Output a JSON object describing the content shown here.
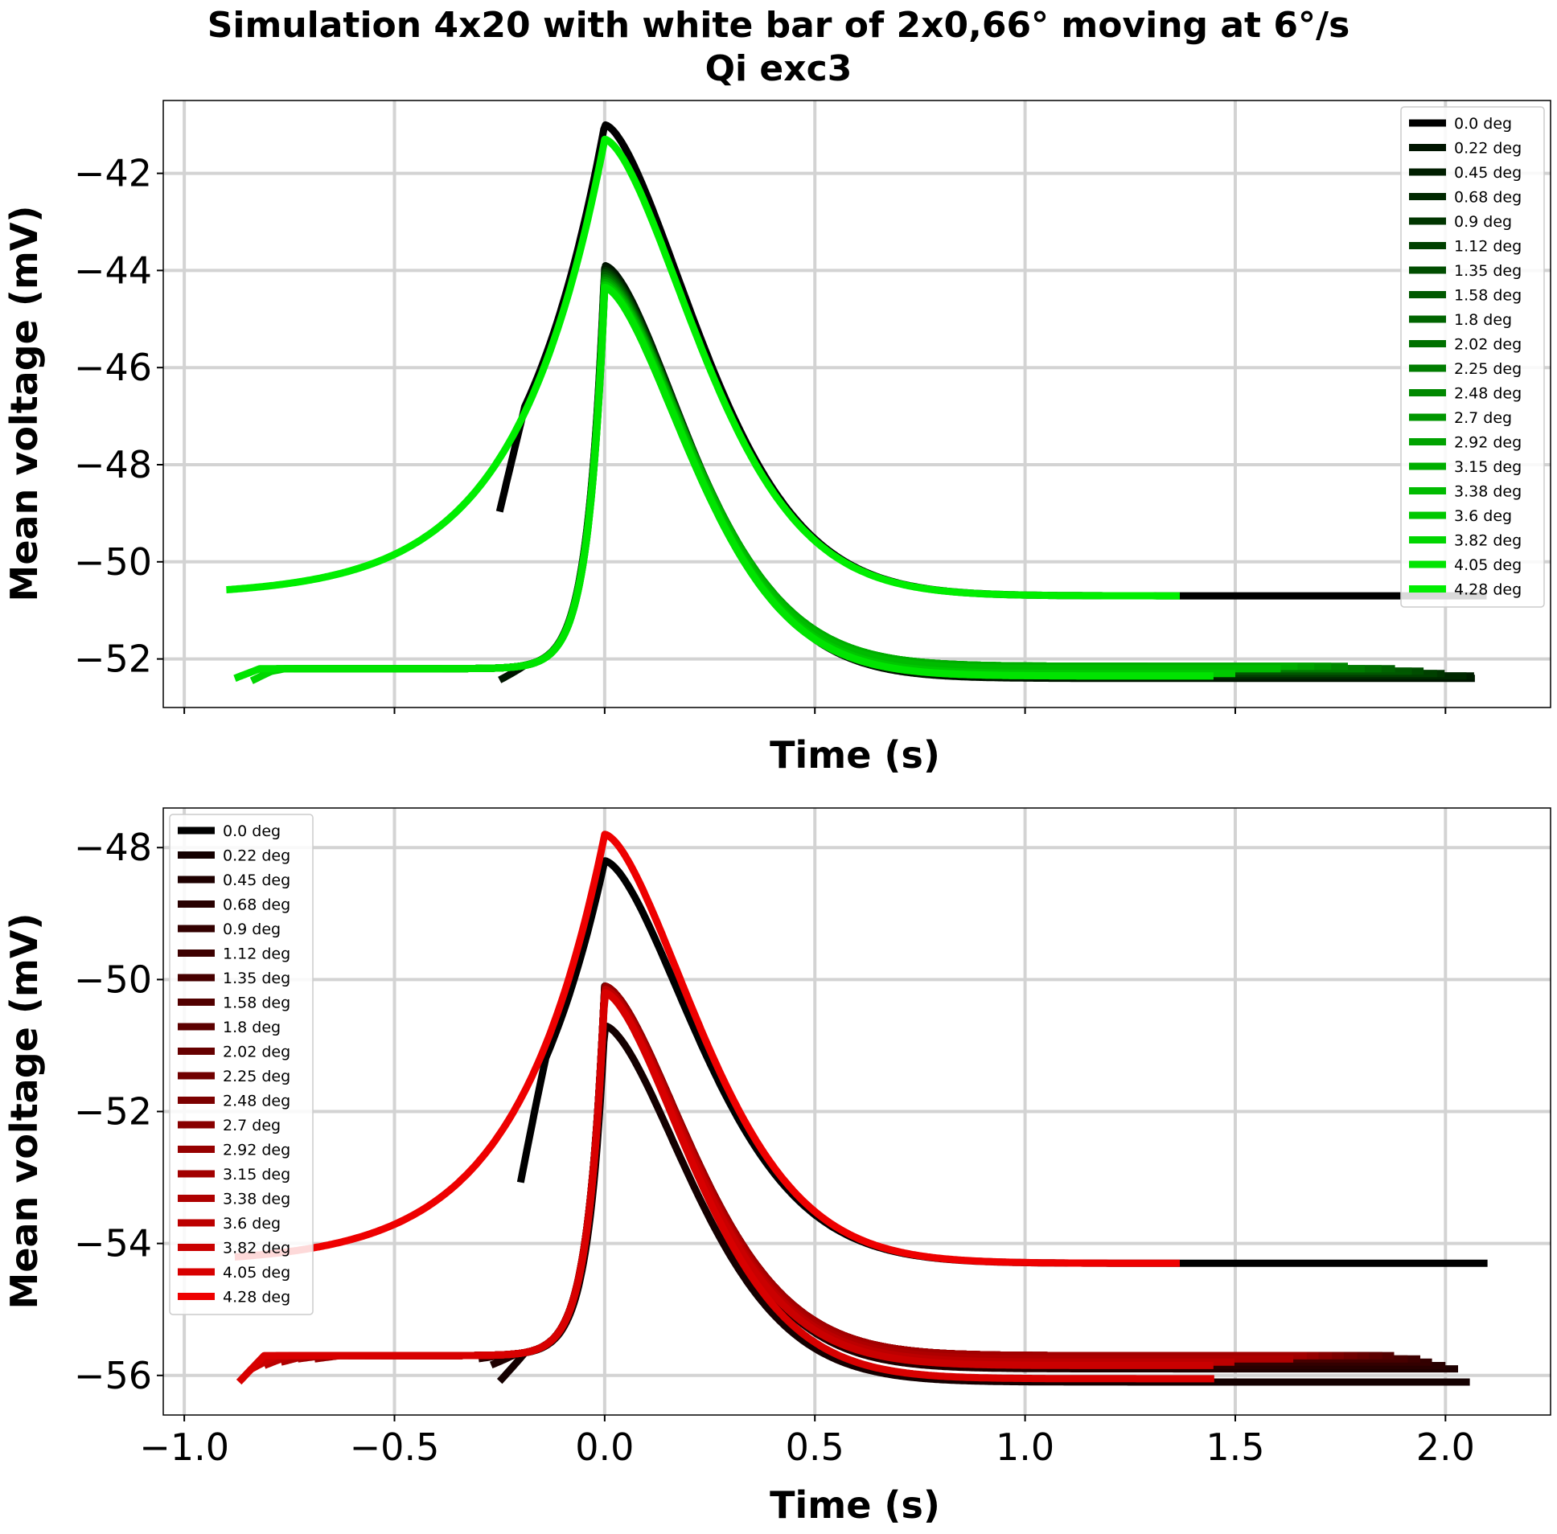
{
  "chart_data": [
    {
      "type": "line",
      "title": "Simulation 4x20 with white bar of 2x0,66° moving at 6°/s",
      "subtitle": "Qi exc3",
      "xlabel": "Time (s)",
      "ylabel": "Mean voltage (mV)",
      "xlim": [
        -1.05,
        2.25
      ],
      "ylim": [
        -53.0,
        -40.5
      ],
      "yticks": [
        -42,
        -44,
        -46,
        -48,
        -50,
        -52
      ],
      "ytick_labels": [
        "−42",
        "−44",
        "−46",
        "−48",
        "−50",
        "−52"
      ],
      "xticks": [
        -1.0,
        -0.5,
        0.0,
        0.5,
        1.0,
        1.5,
        2.0
      ],
      "xtick_labels_shown": false,
      "grid": true,
      "legend": "top-right",
      "baseline_mV": -52.2,
      "outer_baseline_mV": -50.7,
      "series": [
        {
          "name": "0.0 deg",
          "color": "#000000",
          "start": -0.25,
          "end": 2.1,
          "start_value": -52.4,
          "peak": -41.0,
          "end_value": -50.7
        },
        {
          "name": "0.22 deg",
          "color": "#001400",
          "start": -0.25,
          "end": 2.07,
          "start_value": -52.45,
          "peak": -43.9,
          "end_value": -52.4
        },
        {
          "name": "0.45 deg",
          "color": "#001e00",
          "start": -0.28,
          "end": 2.07,
          "start_value": -52.2,
          "peak": -43.95,
          "end_value": -52.35
        },
        {
          "name": "0.68 deg",
          "color": "#002800",
          "start": -0.31,
          "end": 2.05,
          "start_value": -52.2,
          "peak": -44.0,
          "end_value": -52.35
        },
        {
          "name": "0.9 deg",
          "color": "#003500",
          "start": -0.35,
          "end": 2.0,
          "start_value": -52.2,
          "peak": -44.0,
          "end_value": -52.3
        },
        {
          "name": "1.12 deg",
          "color": "#004000",
          "start": -0.38,
          "end": 1.98,
          "start_value": -52.2,
          "peak": -44.05,
          "end_value": -52.3
        },
        {
          "name": "1.35 deg",
          "color": "#004d00",
          "start": -0.42,
          "end": 1.95,
          "start_value": -52.2,
          "peak": -44.05,
          "end_value": -52.25
        },
        {
          "name": "1.58 deg",
          "color": "#005800",
          "start": -0.46,
          "end": 1.92,
          "start_value": -52.2,
          "peak": -44.1,
          "end_value": -52.25
        },
        {
          "name": "1.8 deg",
          "color": "#006400",
          "start": -0.5,
          "end": 1.88,
          "start_value": -52.2,
          "peak": -44.1,
          "end_value": -52.2
        },
        {
          "name": "2.02 deg",
          "color": "#007000",
          "start": -0.54,
          "end": 1.85,
          "start_value": -52.2,
          "peak": -44.15,
          "end_value": -52.2
        },
        {
          "name": "2.25 deg",
          "color": "#007c00",
          "start": -0.58,
          "end": 1.81,
          "start_value": -52.2,
          "peak": -44.15,
          "end_value": -52.2
        },
        {
          "name": "2.48 deg",
          "color": "#008800",
          "start": -0.62,
          "end": 1.77,
          "start_value": -52.2,
          "peak": -44.2,
          "end_value": -52.15
        },
        {
          "name": "2.7 deg",
          "color": "#009600",
          "start": -0.66,
          "end": 1.73,
          "start_value": -52.2,
          "peak": -44.2,
          "end_value": -52.15
        },
        {
          "name": "2.92 deg",
          "color": "#00a200",
          "start": -0.7,
          "end": 1.69,
          "start_value": -52.2,
          "peak": -44.25,
          "end_value": -52.15
        },
        {
          "name": "3.15 deg",
          "color": "#00ae00",
          "start": -0.74,
          "end": 1.65,
          "start_value": -52.2,
          "peak": -44.25,
          "end_value": -52.15
        },
        {
          "name": "3.38 deg",
          "color": "#00bb00",
          "start": -0.78,
          "end": 1.61,
          "start_value": -52.2,
          "peak": -44.3,
          "end_value": -52.2
        },
        {
          "name": "3.6 deg",
          "color": "#00c800",
          "start": -0.82,
          "end": 1.5,
          "start_value": -52.3,
          "peak": -44.3,
          "end_value": -52.3
        },
        {
          "name": "3.82 deg",
          "color": "#00d600",
          "start": -0.84,
          "end": 1.45,
          "start_value": -52.45,
          "peak": -44.35,
          "end_value": -52.35
        },
        {
          "name": "4.05 deg",
          "color": "#00e400",
          "start": -0.88,
          "end": 1.45,
          "start_value": -52.4,
          "peak": -44.35,
          "end_value": -52.35
        },
        {
          "name": "4.28 deg",
          "color": "#00ee00",
          "start": -0.9,
          "end": 1.37,
          "start_value": -50.7,
          "peak": -41.3,
          "end_value": -50.7
        }
      ]
    },
    {
      "type": "line",
      "xlabel": "Time (s)",
      "ylabel": "Mean voltage (mV)",
      "xlim": [
        -1.05,
        2.25
      ],
      "ylim": [
        -56.6,
        -47.4
      ],
      "yticks": [
        -48,
        -50,
        -52,
        -54,
        -56
      ],
      "ytick_labels": [
        "−48",
        "−50",
        "−52",
        "−54",
        "−56"
      ],
      "xticks": [
        -1.0,
        -0.5,
        0.0,
        0.5,
        1.0,
        1.5,
        2.0
      ],
      "xtick_labels": [
        "−1.0",
        "−0.5",
        "0.0",
        "0.5",
        "1.0",
        "1.5",
        "2.0"
      ],
      "grid": true,
      "legend": "top-left",
      "baseline_mV": -55.7,
      "outer_baseline_mV": -54.3,
      "series": [
        {
          "name": "0.0 deg",
          "color": "#000000",
          "start": -0.2,
          "end": 2.1,
          "start_value": -56.1,
          "peak": -48.2,
          "end_value": -54.3
        },
        {
          "name": "0.22 deg",
          "color": "#140000",
          "start": -0.25,
          "end": 2.06,
          "start_value": -56.1,
          "peak": -50.7,
          "end_value": -56.1
        },
        {
          "name": "0.45 deg",
          "color": "#1e0000",
          "start": -0.27,
          "end": 2.03,
          "start_value": -55.85,
          "peak": -50.1,
          "end_value": -55.9
        },
        {
          "name": "0.68 deg",
          "color": "#280000",
          "start": -0.3,
          "end": 2.0,
          "start_value": -55.75,
          "peak": -50.1,
          "end_value": -55.85
        },
        {
          "name": "0.9 deg",
          "color": "#330000",
          "start": -0.34,
          "end": 1.97,
          "start_value": -55.7,
          "peak": -50.1,
          "end_value": -55.8
        },
        {
          "name": "1.12 deg",
          "color": "#3d0000",
          "start": -0.38,
          "end": 1.94,
          "start_value": -55.7,
          "peak": -50.1,
          "end_value": -55.75
        },
        {
          "name": "1.35 deg",
          "color": "#470000",
          "start": -0.41,
          "end": 1.91,
          "start_value": -55.7,
          "peak": -50.1,
          "end_value": -55.75
        },
        {
          "name": "1.58 deg",
          "color": "#520000",
          "start": -0.45,
          "end": 1.88,
          "start_value": -55.7,
          "peak": -50.1,
          "end_value": -55.7
        },
        {
          "name": "1.8 deg",
          "color": "#5c0000",
          "start": -0.49,
          "end": 1.85,
          "start_value": -55.7,
          "peak": -50.1,
          "end_value": -55.7
        },
        {
          "name": "2.02 deg",
          "color": "#660000",
          "start": -0.53,
          "end": 1.82,
          "start_value": -55.7,
          "peak": -50.1,
          "end_value": -55.7
        },
        {
          "name": "2.25 deg",
          "color": "#700000",
          "start": -0.57,
          "end": 1.79,
          "start_value": -55.7,
          "peak": -50.1,
          "end_value": -55.7
        },
        {
          "name": "2.48 deg",
          "color": "#7c0000",
          "start": -0.61,
          "end": 1.76,
          "start_value": -55.7,
          "peak": -50.1,
          "end_value": -55.7
        },
        {
          "name": "2.7 deg",
          "color": "#880000",
          "start": -0.65,
          "end": 1.73,
          "start_value": -55.7,
          "peak": -50.1,
          "end_value": -55.7
        },
        {
          "name": "2.92 deg",
          "color": "#960000",
          "start": -0.69,
          "end": 1.7,
          "start_value": -55.75,
          "peak": -50.1,
          "end_value": -55.7
        },
        {
          "name": "3.15 deg",
          "color": "#a20000",
          "start": -0.73,
          "end": 1.67,
          "start_value": -55.75,
          "peak": -50.15,
          "end_value": -55.7
        },
        {
          "name": "3.38 deg",
          "color": "#ae0000",
          "start": -0.77,
          "end": 1.64,
          "start_value": -55.8,
          "peak": -50.15,
          "end_value": -55.75
        },
        {
          "name": "3.6 deg",
          "color": "#bc0000",
          "start": -0.81,
          "end": 1.5,
          "start_value": -55.85,
          "peak": -50.15,
          "end_value": -55.8
        },
        {
          "name": "3.82 deg",
          "color": "#ca0000",
          "start": -0.84,
          "end": 1.45,
          "start_value": -55.9,
          "peak": -50.2,
          "end_value": -55.85
        },
        {
          "name": "4.05 deg",
          "color": "#d80000",
          "start": -0.87,
          "end": 1.45,
          "start_value": -56.1,
          "peak": -50.2,
          "end_value": -56.05
        },
        {
          "name": "4.28 deg",
          "color": "#ee0000",
          "start": -0.88,
          "end": 1.37,
          "start_value": -54.3,
          "peak": -47.8,
          "end_value": -54.3
        }
      ]
    }
  ]
}
